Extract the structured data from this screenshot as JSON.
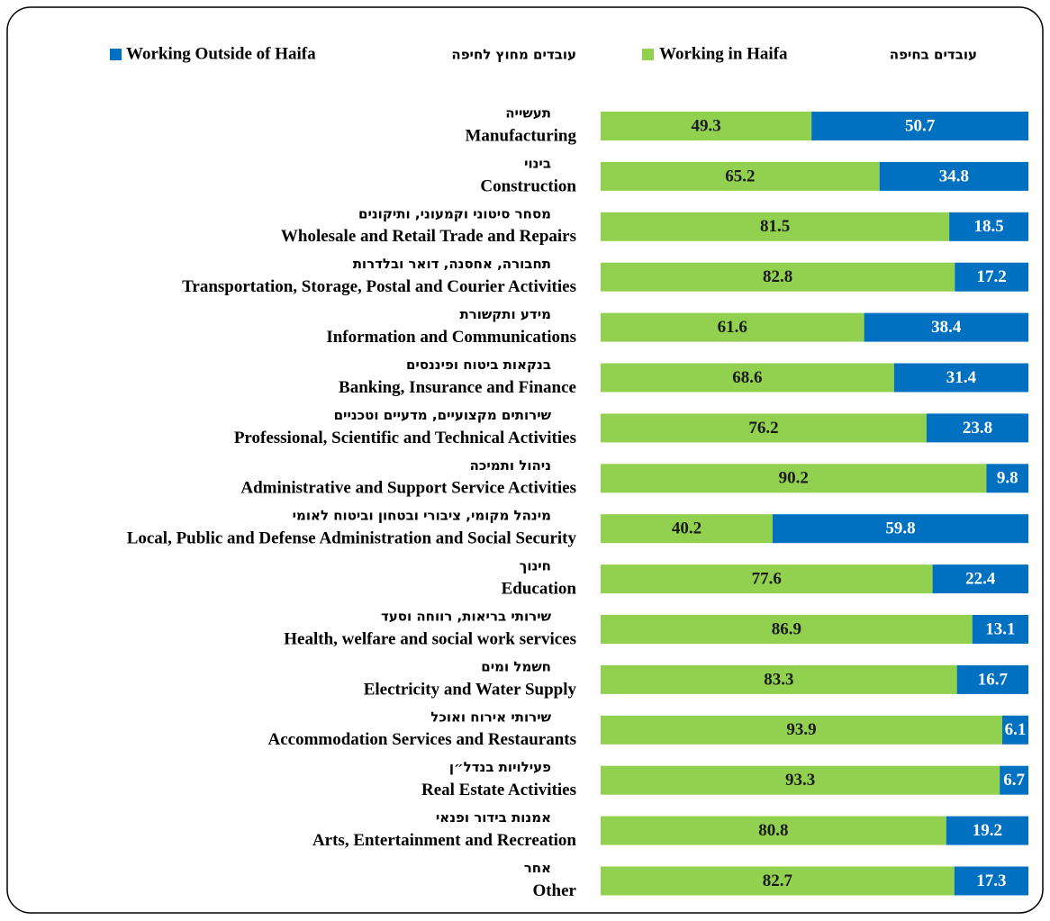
{
  "chart_data": {
    "type": "stacked-barh",
    "categories": [
      "Manufacturing",
      "Construction",
      "Wholesale and Retail Trade and Repairs",
      "Transportation, Storage, Postal and Courier Activities",
      "Information and Communications",
      "Banking, Insurance and Finance",
      "Professional, Scientific and Technical Activities",
      "Administrative and Support Service Activities",
      "Local, Public and Defense Administration and Social Security",
      "Education",
      "Health, welfare and social work services",
      "Electricity and Water Supply",
      "Accommodation Services and Restaurants",
      "Real Estate Activities",
      "Arts, Entertainment and Recreation",
      "Other"
    ],
    "categories_he": [
      "תעשייה",
      "בינוי",
      "מסחר סיטוני וקמעוני, ותיקונים",
      "תחבורה, אחסנה, דואר ובלדרות",
      "מידע ותקשורת",
      "בנקאות ביטוח ופיננסים",
      "שירותים מקצועיים, מדעיים וטכניים",
      "ניהול ותמיכה",
      "מינהל מקומי, ציבורי ובטחון וביטוח לאומי",
      "חינוך",
      "שירותי בריאות, רווחה וסעד",
      "חשמל ומים",
      "שירותי אירוח ואוכל",
      "פעילויות בנדל״ן",
      "אמנות בידור ופנאי",
      "אחר"
    ],
    "series": [
      {
        "name": "Working in Haifa",
        "name_he": "עובדים בחיפה",
        "color": "#92d050",
        "label_color": "#1a1a1a",
        "values": [
          49.3,
          65.2,
          81.5,
          82.8,
          61.6,
          68.6,
          76.2,
          90.2,
          40.2,
          77.6,
          86.9,
          83.3,
          93.9,
          93.3,
          80.8,
          82.7
        ]
      },
      {
        "name": "Working Outside of Haifa",
        "name_he": "עובדים מחוץ לחיפה",
        "color": "#0070c0",
        "label_color": "#ffffff",
        "values": [
          50.7,
          34.8,
          18.5,
          17.2,
          38.4,
          31.4,
          23.8,
          9.8,
          59.8,
          22.4,
          13.1,
          16.7,
          6.1,
          6.7,
          19.2,
          17.3
        ]
      }
    ],
    "xlim": [
      0,
      100
    ]
  }
}
